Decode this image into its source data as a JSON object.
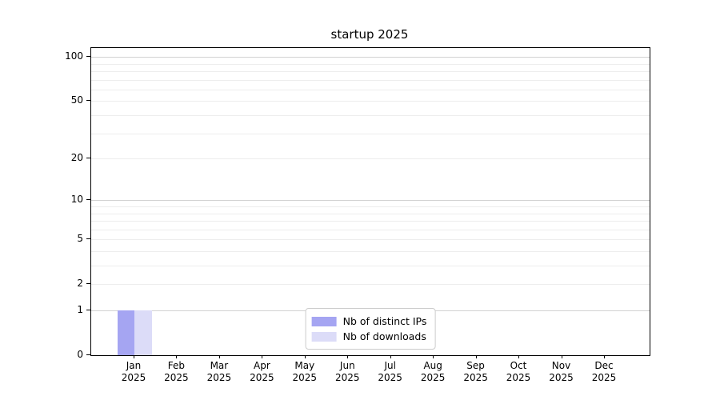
{
  "chart_data": {
    "type": "bar",
    "title": "startup 2025",
    "categories": [
      "Jan",
      "Feb",
      "Mar",
      "Apr",
      "May",
      "Jun",
      "Jul",
      "Aug",
      "Sep",
      "Oct",
      "Nov",
      "Dec"
    ],
    "category_year": "2025",
    "series": [
      {
        "name": "Nb of distinct IPs",
        "color": "#a5a5f2",
        "values": [
          1,
          0,
          0,
          0,
          0,
          0,
          0,
          0,
          0,
          0,
          0,
          0
        ]
      },
      {
        "name": "Nb of downloads",
        "color": "#dcdcf8",
        "values": [
          1,
          0,
          0,
          0,
          0,
          0,
          0,
          0,
          0,
          0,
          0,
          0
        ]
      }
    ],
    "xlabel": "",
    "ylabel": "",
    "yscale": "log1p",
    "ylim": [
      0,
      115
    ],
    "y_tick_labels": [
      0,
      1,
      2,
      5,
      10,
      20,
      50,
      100
    ],
    "y_major_gridlines": [
      1,
      10,
      100
    ],
    "y_minor_gridlines": [
      2,
      3,
      4,
      5,
      6,
      7,
      8,
      9,
      20,
      30,
      40,
      50,
      60,
      70,
      80,
      90
    ],
    "grid": true,
    "legend_position": "lower center"
  },
  "style": {
    "major_grid_color": "#d2d2d2",
    "minor_grid_color": "#ededed",
    "axis_color": "#000000",
    "background": "#ffffff"
  }
}
